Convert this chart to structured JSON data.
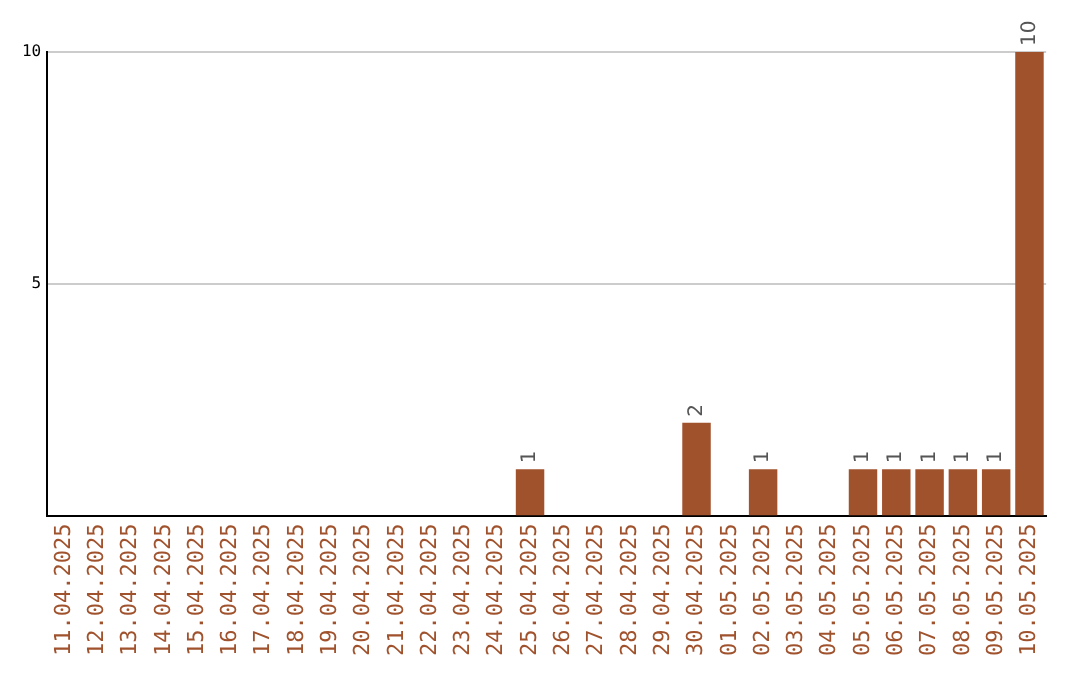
{
  "chart_data": {
    "type": "bar",
    "categories": [
      "11.04.2025",
      "12.04.2025",
      "13.04.2025",
      "14.04.2025",
      "15.04.2025",
      "16.04.2025",
      "17.04.2025",
      "18.04.2025",
      "19.04.2025",
      "20.04.2025",
      "21.04.2025",
      "22.04.2025",
      "23.04.2025",
      "24.04.2025",
      "25.04.2025",
      "26.04.2025",
      "27.04.2025",
      "28.04.2025",
      "29.04.2025",
      "30.04.2025",
      "01.05.2025",
      "02.05.2025",
      "03.05.2025",
      "04.05.2025",
      "05.05.2025",
      "06.05.2025",
      "07.05.2025",
      "08.05.2025",
      "09.05.2025",
      "10.05.2025"
    ],
    "values": [
      0,
      0,
      0,
      0,
      0,
      0,
      0,
      0,
      0,
      0,
      0,
      0,
      0,
      0,
      1,
      0,
      0,
      0,
      0,
      2,
      0,
      1,
      0,
      0,
      1,
      1,
      1,
      1,
      1,
      10
    ],
    "value_labels": [
      null,
      null,
      null,
      null,
      null,
      null,
      null,
      null,
      null,
      null,
      null,
      null,
      null,
      null,
      "1",
      null,
      null,
      null,
      null,
      "2",
      null,
      "1",
      null,
      null,
      "1",
      "1",
      "1",
      "1",
      "1",
      "10"
    ],
    "color": "#a0522d",
    "ylim": [
      0,
      10
    ],
    "yticks": [
      5,
      10
    ],
    "grid": "y",
    "legend": false
  }
}
